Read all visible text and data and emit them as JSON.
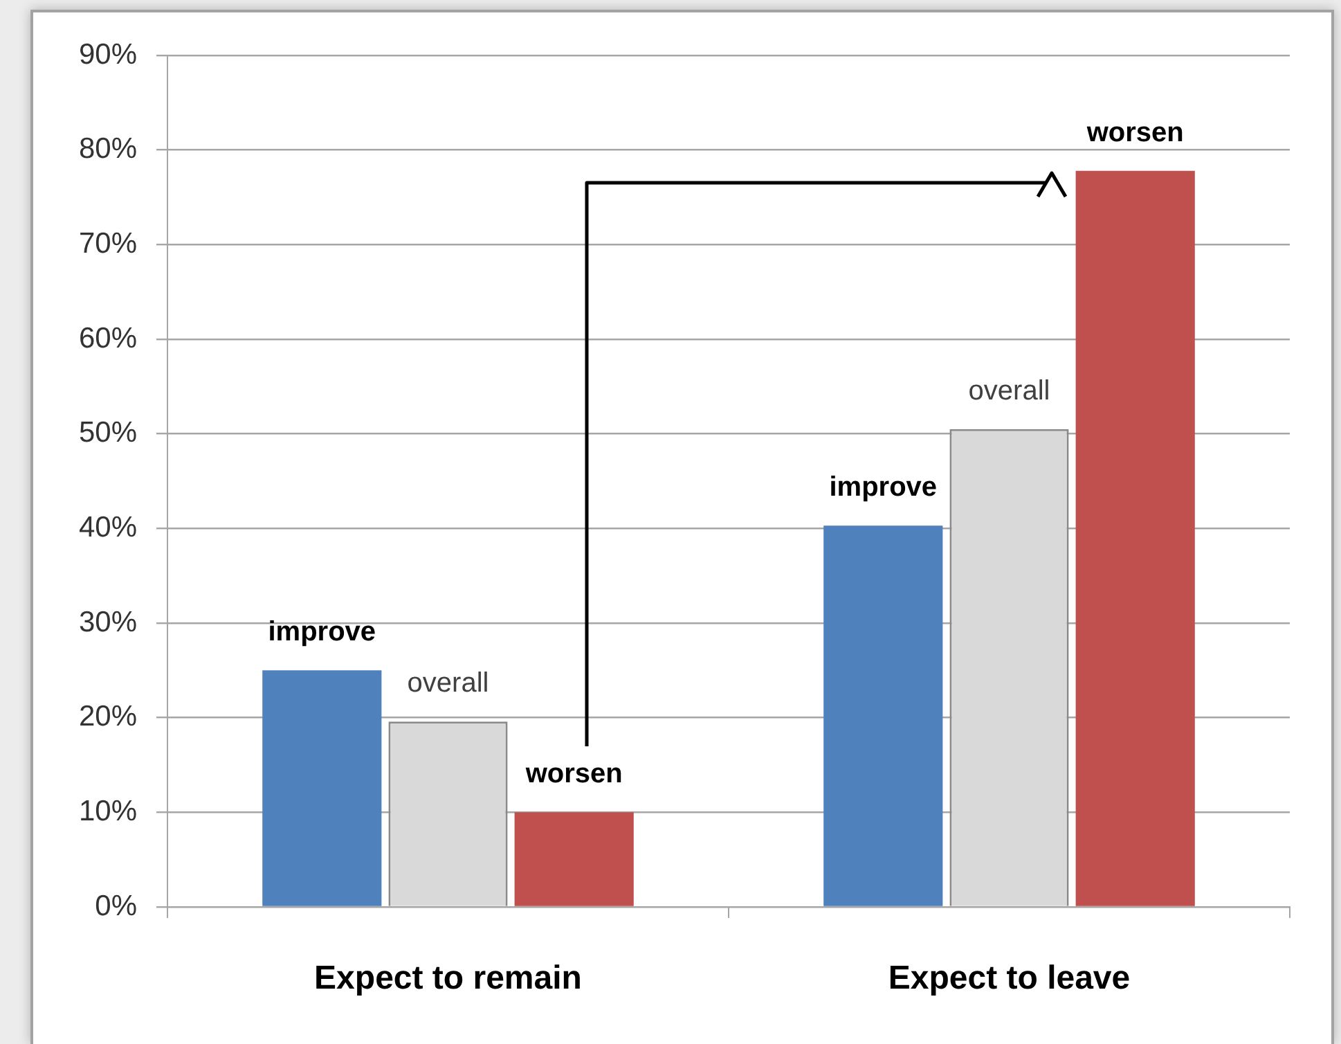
{
  "chart_data": {
    "type": "bar",
    "categories": [
      "Expect to remain",
      "Expect to leave"
    ],
    "series": [
      {
        "name": "improve",
        "color": "#4f81bd",
        "values": [
          25,
          40.3
        ]
      },
      {
        "name": "overall",
        "color": "#d9d9d9",
        "values": [
          19.6,
          50.5
        ]
      },
      {
        "name": "worsen",
        "color": "#c0504d",
        "values": [
          10,
          77.8
        ]
      }
    ],
    "ylim": [
      0,
      90
    ],
    "yticks": [
      {
        "value": 0,
        "label": "0%"
      },
      {
        "value": 10,
        "label": "10%"
      },
      {
        "value": 20,
        "label": "20%"
      },
      {
        "value": 30,
        "label": "30%"
      },
      {
        "value": 40,
        "label": "40%"
      },
      {
        "value": 50,
        "label": "50%"
      },
      {
        "value": 60,
        "label": "60%"
      },
      {
        "value": 70,
        "label": "70%"
      },
      {
        "value": 80,
        "label": "80%"
      },
      {
        "value": 90,
        "label": "90%"
      }
    ],
    "grid": "y"
  }
}
